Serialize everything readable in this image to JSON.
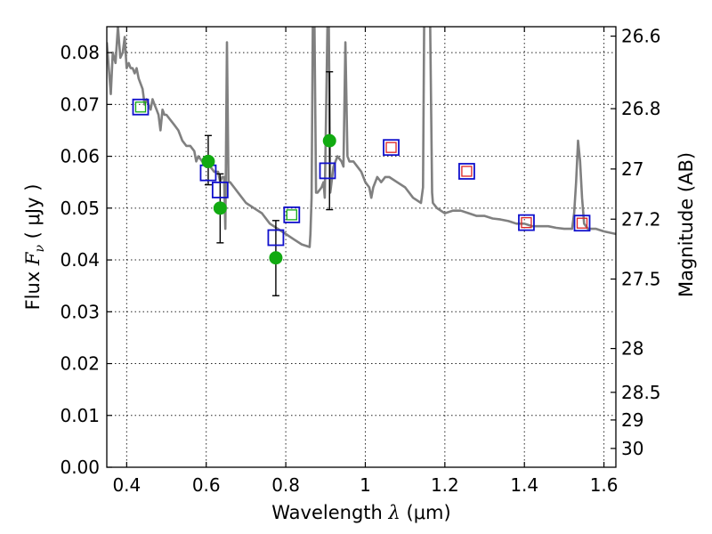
{
  "chart_data": {
    "type": "scatter",
    "title": "",
    "xlabel": "Wavelength  λ (μm)",
    "ylabel": "Flux  F_ν  ( μJy )",
    "ylabel_parts": {
      "pre": "Flux  ",
      "italic": "F",
      "sub": "ν",
      "post": "  ( μJy )"
    },
    "xlabel_parts": {
      "pre": "Wavelength  ",
      "italic": "λ",
      "post": " (μm)"
    },
    "y2label": "Magnitude (AB)",
    "xlim": [
      0.35,
      1.63
    ],
    "ylim": [
      0.0,
      0.085
    ],
    "grid": true,
    "x_ticks": [
      {
        "value": 0.4,
        "label": "0.4"
      },
      {
        "value": 0.6,
        "label": "0.6"
      },
      {
        "value": 0.8,
        "label": "0.8"
      },
      {
        "value": 1.0,
        "label": "1"
      },
      {
        "value": 1.2,
        "label": "1.2"
      },
      {
        "value": 1.4,
        "label": "1.4"
      },
      {
        "value": 1.6,
        "label": "1.6"
      }
    ],
    "y_ticks": [
      {
        "value": 0.0,
        "label": "0.00"
      },
      {
        "value": 0.01,
        "label": "0.01"
      },
      {
        "value": 0.02,
        "label": "0.02"
      },
      {
        "value": 0.03,
        "label": "0.03"
      },
      {
        "value": 0.04,
        "label": "0.04"
      },
      {
        "value": 0.05,
        "label": "0.05"
      },
      {
        "value": 0.06,
        "label": "0.06"
      },
      {
        "value": 0.07,
        "label": "0.07"
      },
      {
        "value": 0.08,
        "label": "0.08"
      }
    ],
    "mag_ticks": [
      {
        "value": 26.6,
        "label": "26.6"
      },
      {
        "value": 26.8,
        "label": "26.8"
      },
      {
        "value": 27.0,
        "label": "27"
      },
      {
        "value": 27.2,
        "label": "27.2"
      },
      {
        "value": 27.5,
        "label": "27.5"
      },
      {
        "value": 28.0,
        "label": "28"
      },
      {
        "value": 28.5,
        "label": "28.5"
      },
      {
        "value": 29.0,
        "label": "29"
      },
      {
        "value": 30.0,
        "label": "30"
      }
    ],
    "series": [
      {
        "name": "model_sed",
        "kind": "line",
        "color": "#808080",
        "points": [
          [
            0.35,
            0.082
          ],
          [
            0.36,
            0.072
          ],
          [
            0.365,
            0.08
          ],
          [
            0.372,
            0.078
          ],
          [
            0.378,
            0.085
          ],
          [
            0.384,
            0.079
          ],
          [
            0.39,
            0.08
          ],
          [
            0.395,
            0.083
          ],
          [
            0.4,
            0.077
          ],
          [
            0.405,
            0.078
          ],
          [
            0.41,
            0.077
          ],
          [
            0.415,
            0.077
          ],
          [
            0.42,
            0.076
          ],
          [
            0.425,
            0.077
          ],
          [
            0.43,
            0.075
          ],
          [
            0.435,
            0.074
          ],
          [
            0.44,
            0.073
          ],
          [
            0.445,
            0.07
          ],
          [
            0.45,
            0.071
          ],
          [
            0.455,
            0.07
          ],
          [
            0.46,
            0.069
          ],
          [
            0.465,
            0.071
          ],
          [
            0.47,
            0.07
          ],
          [
            0.475,
            0.069
          ],
          [
            0.48,
            0.068
          ],
          [
            0.485,
            0.065
          ],
          [
            0.49,
            0.069
          ],
          [
            0.495,
            0.068
          ],
          [
            0.5,
            0.068
          ],
          [
            0.51,
            0.067
          ],
          [
            0.52,
            0.066
          ],
          [
            0.53,
            0.065
          ],
          [
            0.54,
            0.063
          ],
          [
            0.55,
            0.062
          ],
          [
            0.56,
            0.062
          ],
          [
            0.57,
            0.061
          ],
          [
            0.575,
            0.059
          ],
          [
            0.58,
            0.06
          ],
          [
            0.59,
            0.059
          ],
          [
            0.6,
            0.058
          ],
          [
            0.61,
            0.058
          ],
          [
            0.62,
            0.057
          ],
          [
            0.63,
            0.057
          ],
          [
            0.635,
            0.055
          ],
          [
            0.64,
            0.056
          ],
          [
            0.645,
            0.056
          ],
          [
            0.648,
            0.046
          ],
          [
            0.652,
            0.082
          ],
          [
            0.656,
            0.055
          ],
          [
            0.66,
            0.055
          ],
          [
            0.67,
            0.054
          ],
          [
            0.68,
            0.053
          ],
          [
            0.7,
            0.051
          ],
          [
            0.72,
            0.05
          ],
          [
            0.74,
            0.049
          ],
          [
            0.76,
            0.047
          ],
          [
            0.78,
            0.046
          ],
          [
            0.8,
            0.045
          ],
          [
            0.82,
            0.044
          ],
          [
            0.84,
            0.043
          ],
          [
            0.86,
            0.0425
          ],
          [
            0.862,
            0.045
          ],
          [
            0.865,
            0.052
          ],
          [
            0.868,
            0.086
          ],
          [
            0.872,
            0.086
          ],
          [
            0.876,
            0.053
          ],
          [
            0.88,
            0.053
          ],
          [
            0.89,
            0.054
          ],
          [
            0.895,
            0.055
          ],
          [
            0.898,
            0.052
          ],
          [
            0.905,
            0.086
          ],
          [
            0.908,
            0.086
          ],
          [
            0.912,
            0.053
          ],
          [
            0.92,
            0.058
          ],
          [
            0.93,
            0.06
          ],
          [
            0.94,
            0.059
          ],
          [
            0.945,
            0.058
          ],
          [
            0.95,
            0.082
          ],
          [
            0.955,
            0.06
          ],
          [
            0.96,
            0.059
          ],
          [
            0.97,
            0.059
          ],
          [
            0.98,
            0.058
          ],
          [
            0.99,
            0.057
          ],
          [
            1.0,
            0.055
          ],
          [
            1.01,
            0.054
          ],
          [
            1.015,
            0.052
          ],
          [
            1.02,
            0.054
          ],
          [
            1.03,
            0.056
          ],
          [
            1.04,
            0.055
          ],
          [
            1.05,
            0.056
          ],
          [
            1.06,
            0.056
          ],
          [
            1.08,
            0.055
          ],
          [
            1.1,
            0.054
          ],
          [
            1.12,
            0.052
          ],
          [
            1.14,
            0.051
          ],
          [
            1.145,
            0.054
          ],
          [
            1.148,
            0.086
          ],
          [
            1.163,
            0.086
          ],
          [
            1.168,
            0.053
          ],
          [
            1.17,
            0.051
          ],
          [
            1.18,
            0.05
          ],
          [
            1.2,
            0.049
          ],
          [
            1.22,
            0.0495
          ],
          [
            1.24,
            0.0495
          ],
          [
            1.26,
            0.049
          ],
          [
            1.28,
            0.0485
          ],
          [
            1.3,
            0.0485
          ],
          [
            1.32,
            0.048
          ],
          [
            1.34,
            0.0478
          ],
          [
            1.36,
            0.0475
          ],
          [
            1.38,
            0.047
          ],
          [
            1.4,
            0.047
          ],
          [
            1.42,
            0.0465
          ],
          [
            1.44,
            0.0465
          ],
          [
            1.46,
            0.0465
          ],
          [
            1.48,
            0.0462
          ],
          [
            1.5,
            0.046
          ],
          [
            1.52,
            0.046
          ],
          [
            1.525,
            0.049
          ],
          [
            1.53,
            0.055
          ],
          [
            1.535,
            0.063
          ],
          [
            1.54,
            0.059
          ],
          [
            1.545,
            0.052
          ],
          [
            1.55,
            0.047
          ],
          [
            1.56,
            0.046
          ],
          [
            1.58,
            0.046
          ],
          [
            1.6,
            0.0455
          ],
          [
            1.63,
            0.045
          ]
        ]
      },
      {
        "name": "observed_flux",
        "kind": "points_with_errors",
        "color": "#11aa11",
        "points": [
          {
            "x": 0.605,
            "y": 0.059,
            "ylo": 0.0545,
            "yhi": 0.064
          },
          {
            "x": 0.635,
            "y": 0.05,
            "ylo": 0.0433,
            "yhi": 0.0566
          },
          {
            "x": 0.775,
            "y": 0.0404,
            "ylo": 0.0331,
            "yhi": 0.0476
          },
          {
            "x": 0.91,
            "y": 0.063,
            "ylo": 0.0497,
            "yhi": 0.0763
          }
        ]
      },
      {
        "name": "model_bandpass_flux",
        "kind": "squares",
        "color": "#1010cc",
        "points": [
          {
            "x": 0.435,
            "y": 0.0695,
            "inner": "#11aa11"
          },
          {
            "x": 0.605,
            "y": 0.0568,
            "inner": ""
          },
          {
            "x": 0.635,
            "y": 0.0535,
            "inner": ""
          },
          {
            "x": 0.775,
            "y": 0.0443,
            "inner": ""
          },
          {
            "x": 0.815,
            "y": 0.0487,
            "inner": "#11aa11"
          },
          {
            "x": 0.905,
            "y": 0.0572,
            "inner": ""
          },
          {
            "x": 1.065,
            "y": 0.0617,
            "inner": "#dd2222"
          },
          {
            "x": 1.255,
            "y": 0.0571,
            "inner": "#dd2222"
          },
          {
            "x": 1.405,
            "y": 0.0472,
            "inner": "#dd2222"
          },
          {
            "x": 1.545,
            "y": 0.0471,
            "inner": "#dd2222"
          }
        ]
      }
    ]
  }
}
